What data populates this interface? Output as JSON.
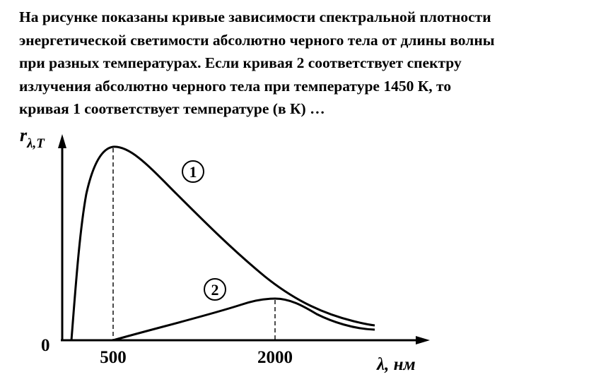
{
  "problem": {
    "lines": [
      "На рисунке показаны кривые зависимости спектральной плотности",
      "энергетической светимости абсолютно черного тела от длины волны",
      "при разных температурах. Если кривая 2 соответствует спектру",
      "излучения абсолютно черного тела при температуре 1450 К, то",
      "кривая 1 соответствует температуре (в К) …"
    ]
  },
  "chart_data": {
    "type": "line",
    "ylabel": "r",
    "ylabel_subscript": "λ,T",
    "xlabel": "λ, нм",
    "origin_label": "0",
    "x_ticks": [
      {
        "value": 500,
        "label": "500"
      },
      {
        "value": 2000,
        "label": "2000"
      }
    ],
    "series": [
      {
        "name": "1",
        "peak_x": 500
      },
      {
        "name": "2",
        "peak_x": 2000
      }
    ],
    "grid": false,
    "legend": "none"
  }
}
